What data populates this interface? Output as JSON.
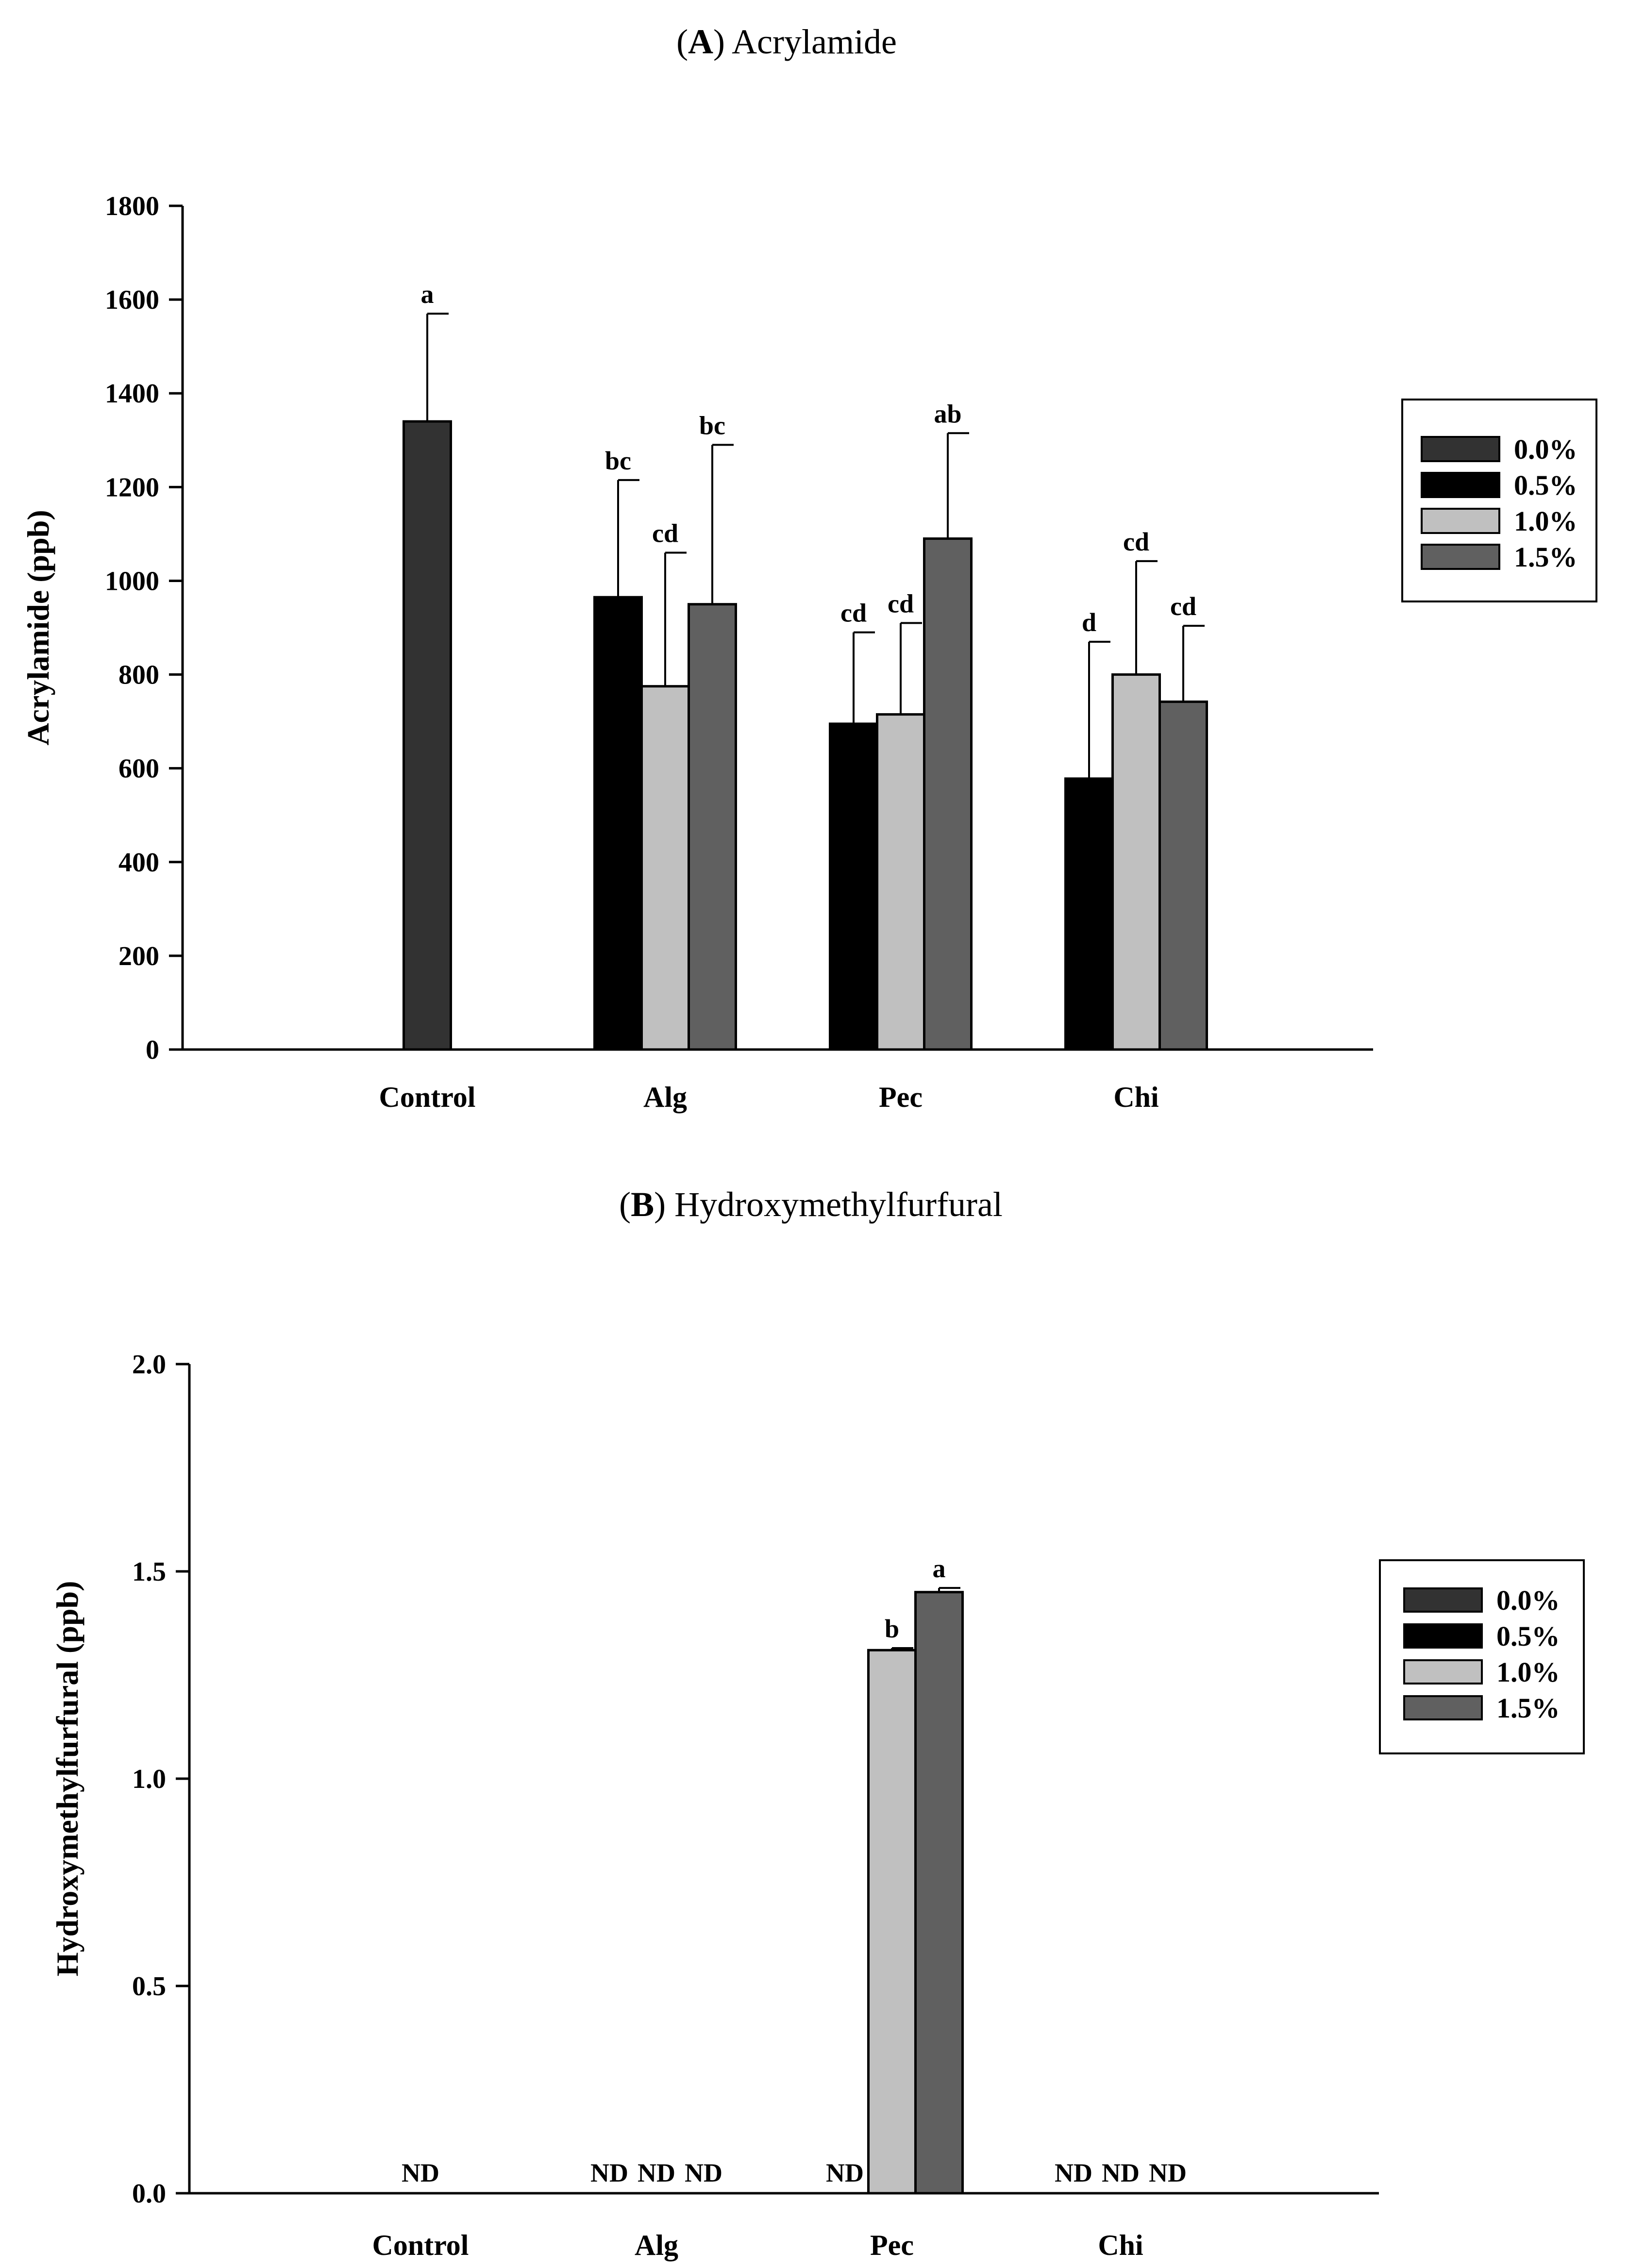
{
  "chart_data": [
    {
      "type": "bar",
      "panel_letter": "A",
      "title": "Acrylamide",
      "ylabel": "Acrylamide (ppb)",
      "xlabel": "",
      "ylim": [
        0,
        1800
      ],
      "yticks": [
        "0",
        "200",
        "400",
        "600",
        "800",
        "1000",
        "1200",
        "1400",
        "1600",
        "1800"
      ],
      "categories": [
        "Control",
        "Alg",
        "Pec",
        "Chi"
      ],
      "legend_position": "right",
      "legend": [
        {
          "label": "0.0%",
          "color": "#323232"
        },
        {
          "label": "0.5%",
          "color": "#000000"
        },
        {
          "label": "1.0%",
          "color": "#c0c0c0"
        },
        {
          "label": "1.5%",
          "color": "#606060"
        }
      ],
      "bars": [
        {
          "category": "Control",
          "series": "0.0%",
          "value": 1340,
          "error": 230,
          "label": "a"
        },
        {
          "category": "Alg",
          "series": "0.5%",
          "value": 965,
          "error": 250,
          "label": "bc"
        },
        {
          "category": "Alg",
          "series": "1.0%",
          "value": 775,
          "error": 285,
          "label": "cd"
        },
        {
          "category": "Alg",
          "series": "1.5%",
          "value": 950,
          "error": 340,
          "label": "bc"
        },
        {
          "category": "Pec",
          "series": "0.5%",
          "value": 695,
          "error": 195,
          "label": "cd"
        },
        {
          "category": "Pec",
          "series": "1.0%",
          "value": 715,
          "error": 195,
          "label": "cd"
        },
        {
          "category": "Pec",
          "series": "1.5%",
          "value": 1090,
          "error": 225,
          "label": "ab"
        },
        {
          "category": "Chi",
          "series": "0.5%",
          "value": 578,
          "error": 292,
          "label": "d"
        },
        {
          "category": "Chi",
          "series": "1.0%",
          "value": 800,
          "error": 242,
          "label": "cd"
        },
        {
          "category": "Chi",
          "series": "1.5%",
          "value": 742,
          "error": 162,
          "label": "cd"
        }
      ],
      "nd_labels": []
    },
    {
      "type": "bar",
      "panel_letter": "B",
      "title": "Hydroxymethylfurfural",
      "ylabel": "Hydroxymethylfurfural (ppb)",
      "xlabel": "",
      "ylim": [
        0,
        2.0
      ],
      "yticks": [
        "0.0",
        "0.5",
        "1.0",
        "1.5",
        "2.0"
      ],
      "categories": [
        "Control",
        "Alg",
        "Pec",
        "Chi"
      ],
      "legend_position": "right",
      "legend": [
        {
          "label": "0.0%",
          "color": "#323232"
        },
        {
          "label": "0.5%",
          "color": "#000000"
        },
        {
          "label": "1.0%",
          "color": "#c0c0c0"
        },
        {
          "label": "1.5%",
          "color": "#606060"
        }
      ],
      "bars": [
        {
          "category": "Pec",
          "series": "1.0%",
          "value": 1.31,
          "error": 0.005,
          "label": "b"
        },
        {
          "category": "Pec",
          "series": "1.5%",
          "value": 1.45,
          "error": 0.01,
          "label": "a"
        }
      ],
      "nd_labels": [
        {
          "category": "Control",
          "series": "0.0%",
          "label": "ND"
        },
        {
          "category": "Alg",
          "series": "0.5%",
          "label": "ND"
        },
        {
          "category": "Alg",
          "series": "1.0%",
          "label": "ND"
        },
        {
          "category": "Alg",
          "series": "1.5%",
          "label": "ND"
        },
        {
          "category": "Pec",
          "series": "0.5%",
          "label": "ND"
        },
        {
          "category": "Chi",
          "series": "0.5%",
          "label": "ND"
        },
        {
          "category": "Chi",
          "series": "1.0%",
          "label": "ND"
        },
        {
          "category": "Chi",
          "series": "1.5%",
          "label": "ND"
        }
      ]
    }
  ]
}
